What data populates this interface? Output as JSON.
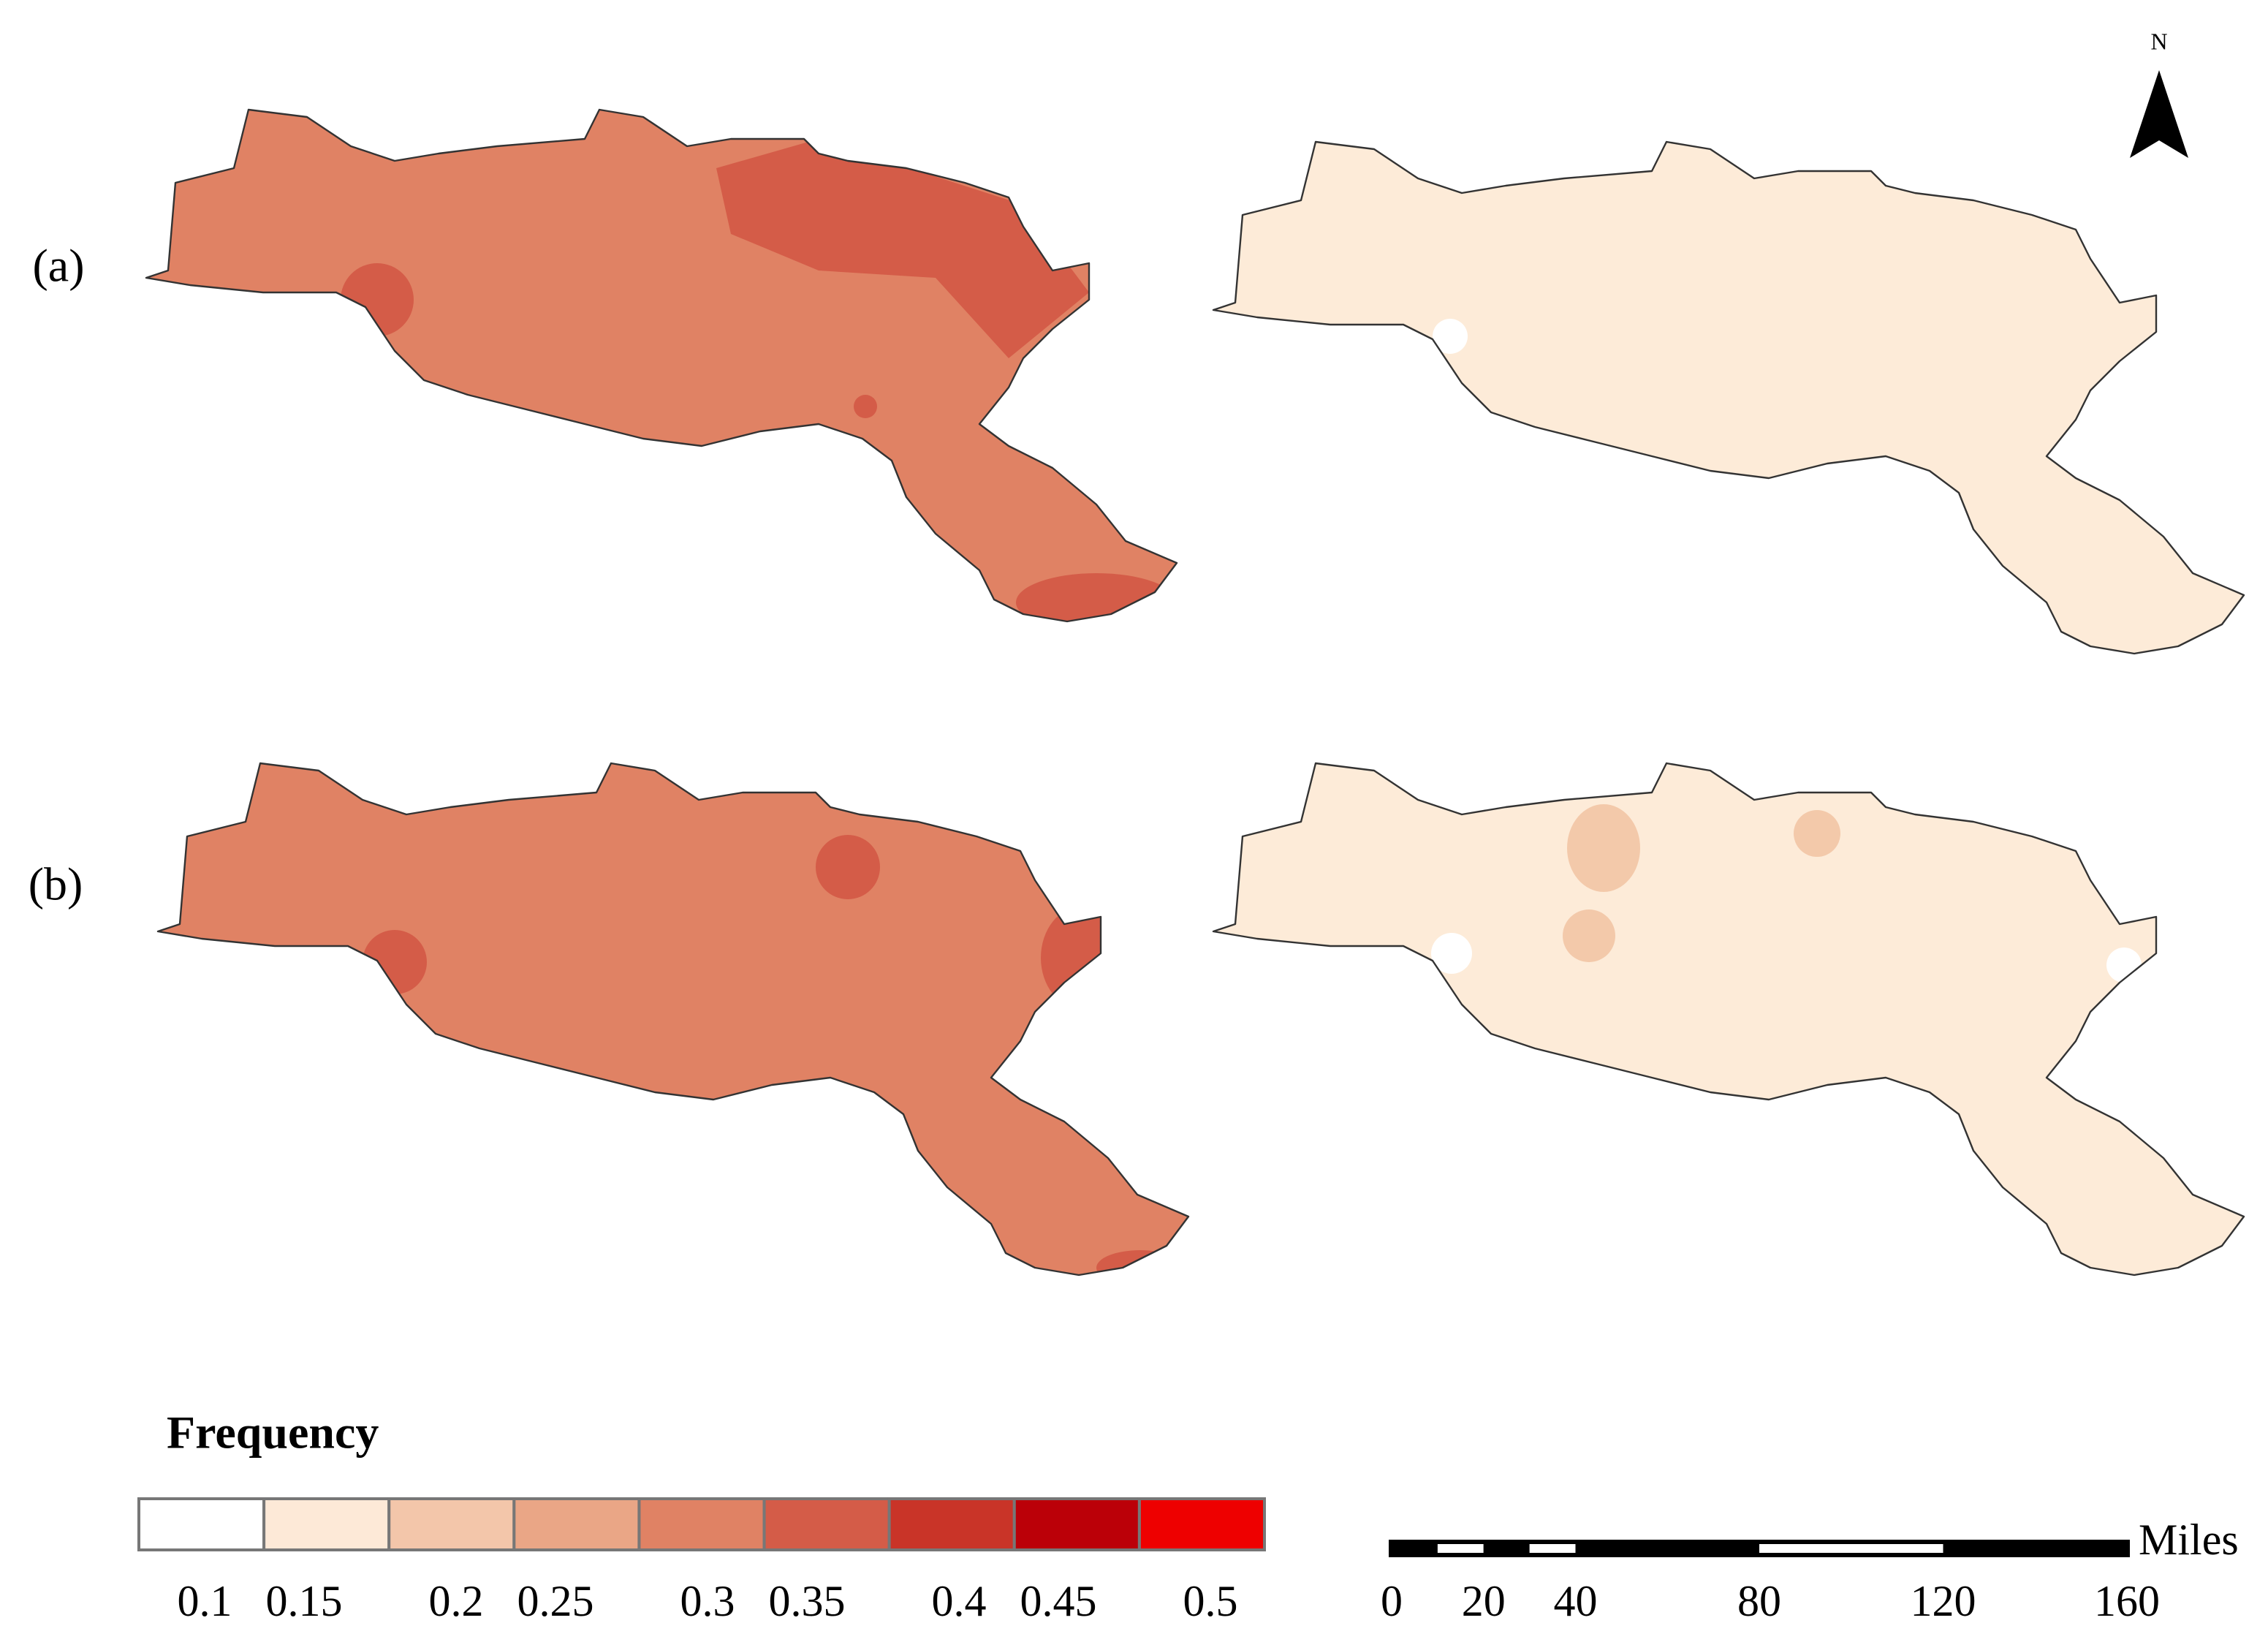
{
  "panels": [
    {
      "label": "(a)"
    },
    {
      "label": "(b)"
    }
  ],
  "north_arrow": "N",
  "legend": {
    "title": "Frequency",
    "classes": [
      {
        "value": 0.1,
        "color": "#ffffff"
      },
      {
        "value": 0.15,
        "color": "#fde9d7"
      },
      {
        "value": 0.2,
        "color": "#f3c6aa"
      },
      {
        "value": 0.25,
        "color": "#eaa686"
      },
      {
        "value": 0.3,
        "color": "#e08264"
      },
      {
        "value": 0.35,
        "color": "#d45c48"
      },
      {
        "value": 0.4,
        "color": "#c93428"
      },
      {
        "value": 0.45,
        "color": "#bb0008"
      },
      {
        "value": 0.5,
        "color": "#ee0000"
      }
    ]
  },
  "scale_bar": {
    "unit": "Miles",
    "ticks": [
      0,
      20,
      40,
      80,
      120,
      160
    ]
  }
}
